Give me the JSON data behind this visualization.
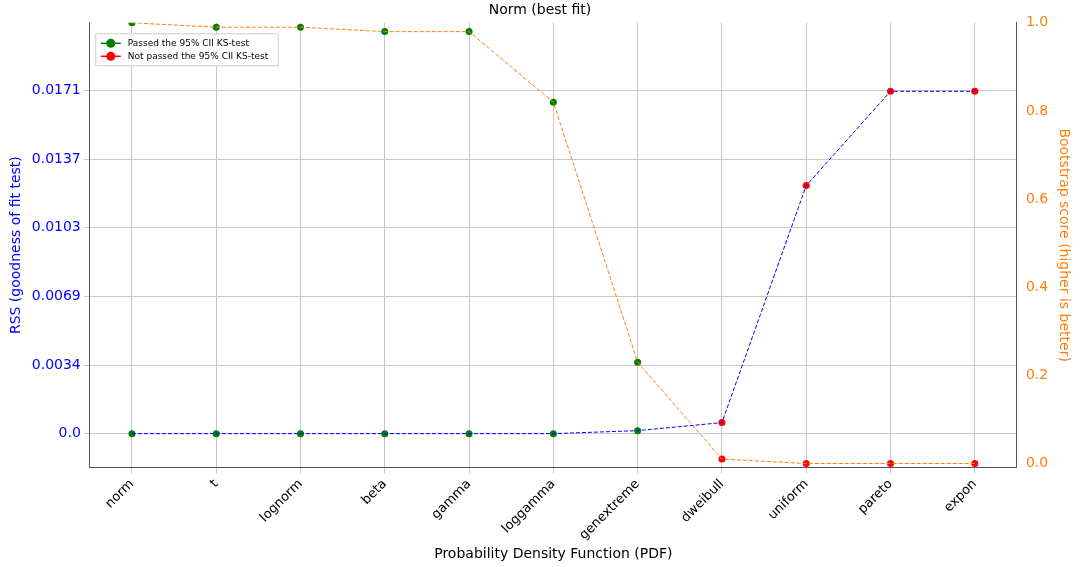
{
  "chart_data": {
    "type": "line",
    "title": "Norm (best fit)",
    "xlabel": "Probability Density Function (PDF)",
    "ylabel": "RSS (goodness of fit test)",
    "y2label": "Bootstrap score (higher is better)",
    "categories": [
      "norm",
      "t",
      "lognorm",
      "beta",
      "gamma",
      "loggamma",
      "genextreme",
      "dweibull",
      "uniform",
      "pareto",
      "expon"
    ],
    "series": [
      {
        "type": "line",
        "color": "#0000ff",
        "marker": "none",
        "line_style": "dashed",
        "values": [
          0,
          0,
          0,
          0,
          0,
          0,
          0.00015,
          0.00055,
          0.01239,
          0.0171,
          0.0171
        ]
      },
      {
        "type": "line",
        "axis": "y2",
        "color": "#ff7f0e",
        "marker": "none",
        "line_style": "dashed",
        "values": [
          1.0,
          0.99,
          0.99,
          0.98,
          0.98,
          0.82,
          0.23,
          0.01,
          0,
          0,
          0
        ]
      },
      {
        "type": "scatter",
        "name": "Passed the 95% CII KS-test",
        "color": "#008000",
        "marker": "circle",
        "values": [
          0,
          0,
          0,
          0,
          0,
          0,
          0.00015,
          null,
          null,
          null,
          null
        ]
      },
      {
        "type": "scatter",
        "name": "Not passed the 95% CII KS-test",
        "color": "#ff0000",
        "marker": "circle",
        "values": [
          null,
          null,
          null,
          null,
          null,
          null,
          null,
          0.00055,
          0.01239,
          0.0171,
          0.0171
        ]
      },
      {
        "type": "scatter",
        "axis": "y2",
        "color": "#008000",
        "marker": "circle",
        "values": [
          1.0,
          0.99,
          0.99,
          0.98,
          0.98,
          0.82,
          0.23,
          null,
          null,
          null,
          null
        ]
      },
      {
        "type": "scatter",
        "axis": "y2",
        "color": "#ff0000",
        "marker": "circle",
        "values": [
          null,
          null,
          null,
          null,
          null,
          null,
          null,
          0.01,
          0,
          0,
          0
        ]
      }
    ],
    "ylim": [
      -0.00169,
      0.02052
    ],
    "yticks": [
      {
        "value": 0,
        "label": "0.0"
      },
      {
        "value": 0.003428,
        "label": "0.0034"
      },
      {
        "value": 0.006856,
        "label": "0.0069"
      },
      {
        "value": 0.010284,
        "label": "0.0103"
      },
      {
        "value": 0.013712,
        "label": "0.0137"
      },
      {
        "value": 0.01714,
        "label": "0.0171"
      }
    ],
    "y2lim": [
      -0.009,
      1.0
    ],
    "y2ticks": [
      {
        "value": 0,
        "label": "0.0"
      },
      {
        "value": 0.2,
        "label": "0.2"
      },
      {
        "value": 0.4,
        "label": "0.4"
      },
      {
        "value": 0.6,
        "label": "0.6"
      },
      {
        "value": 0.8,
        "label": "0.8"
      },
      {
        "value": 1.0,
        "label": "1.0"
      }
    ],
    "grid": true,
    "legend": "top left"
  }
}
